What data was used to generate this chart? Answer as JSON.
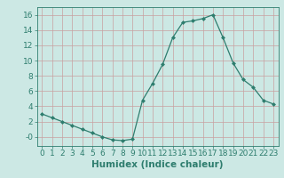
{
  "x": [
    0,
    1,
    2,
    3,
    4,
    5,
    6,
    7,
    8,
    9,
    10,
    11,
    12,
    13,
    14,
    15,
    16,
    17,
    18,
    19,
    20,
    21,
    22,
    23
  ],
  "y": [
    3.0,
    2.5,
    2.0,
    1.5,
    1.0,
    0.5,
    0.0,
    -0.4,
    -0.5,
    -0.3,
    4.8,
    7.0,
    9.5,
    13.0,
    15.0,
    15.2,
    15.5,
    16.0,
    13.0,
    9.7,
    7.5,
    6.5,
    4.8,
    4.3
  ],
  "line_color": "#2e7d6e",
  "marker": "D",
  "marker_size": 2.5,
  "bg_color": "#cce8e4",
  "grid_color_major": "#c8a0a0",
  "xlabel": "Humidex (Indice chaleur)",
  "xlim": [
    -0.5,
    23.5
  ],
  "ylim": [
    -1.2,
    17.0
  ],
  "yticks": [
    0,
    2,
    4,
    6,
    8,
    10,
    12,
    14,
    16
  ],
  "ytick_labels": [
    "-0",
    "2",
    "4",
    "6",
    "8",
    "10",
    "12",
    "14",
    "16"
  ],
  "xticks": [
    0,
    1,
    2,
    3,
    4,
    5,
    6,
    7,
    8,
    9,
    10,
    11,
    12,
    13,
    14,
    15,
    16,
    17,
    18,
    19,
    20,
    21,
    22,
    23
  ],
  "xlabel_fontsize": 7.5,
  "tick_fontsize": 6.5
}
